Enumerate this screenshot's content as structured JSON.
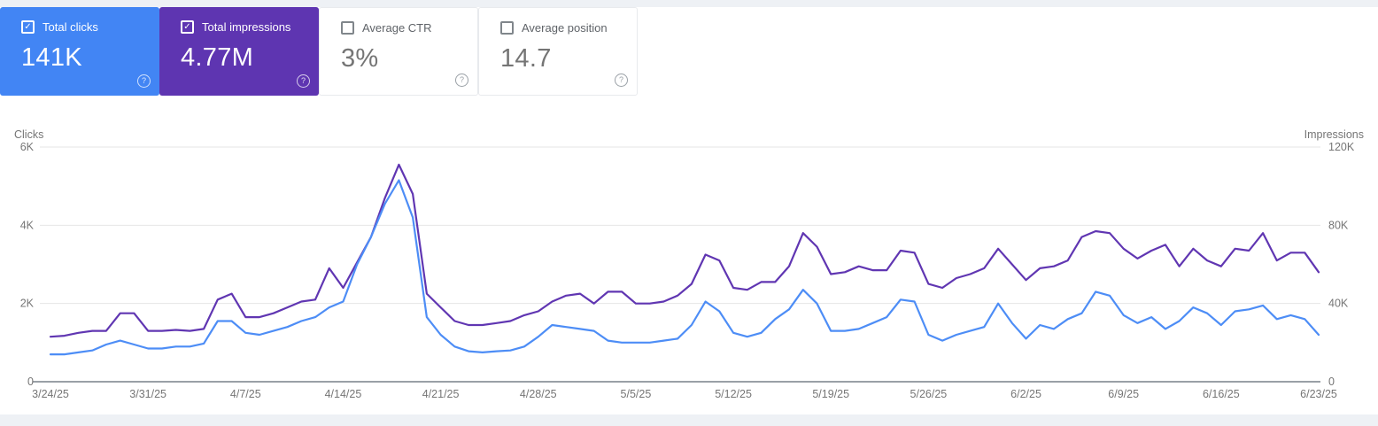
{
  "page": {
    "app": "Google Search Console - Performance",
    "background": "#eef1f5",
    "panel_background": "#ffffff"
  },
  "icons": {
    "checked_glyph": "✓",
    "help_glyph": "?"
  },
  "metric_cards": [
    {
      "label": "Total clicks",
      "value": "141K",
      "selected": true,
      "color": "#4285f4"
    },
    {
      "label": "Total impressions",
      "value": "4.77M",
      "selected": true,
      "color": "#5e35b1"
    },
    {
      "label": "Average CTR",
      "value": "3%",
      "selected": false,
      "color": "#ffffff"
    },
    {
      "label": "Average position",
      "value": "14.7",
      "selected": false,
      "color": "#ffffff"
    }
  ],
  "chart_data": {
    "type": "line",
    "title": "",
    "grid": true,
    "legend": "none",
    "num_points": 92,
    "x_tick_labels": [
      "3/24/25",
      "3/31/25",
      "4/7/25",
      "4/14/25",
      "4/21/25",
      "4/28/25",
      "5/5/25",
      "5/12/25",
      "5/19/25",
      "5/26/25",
      "6/2/25",
      "6/9/25",
      "6/16/25",
      "6/23/25"
    ],
    "x_tick_indices": [
      0,
      7,
      14,
      21,
      28,
      35,
      42,
      49,
      56,
      63,
      70,
      77,
      84,
      91
    ],
    "left_axis": {
      "label": "Clicks",
      "ticks": [
        "6K",
        "4K",
        "2K",
        "0"
      ],
      "tick_values": [
        6000,
        4000,
        2000,
        0
      ],
      "range": [
        0,
        6000
      ]
    },
    "right_axis": {
      "label": "Impressions",
      "ticks": [
        "120K",
        "80K",
        "40K",
        "0"
      ],
      "tick_values": [
        120000,
        80000,
        40000,
        0
      ],
      "range": [
        0,
        120000
      ]
    },
    "series": [
      {
        "name": "Impressions",
        "axis": "right",
        "color": "#6036b2",
        "values": [
          23000,
          23500,
          25000,
          26000,
          26000,
          35000,
          35000,
          26000,
          26000,
          26500,
          26000,
          27000,
          42000,
          45000,
          33000,
          33000,
          35000,
          38000,
          41000,
          42000,
          58000,
          48000,
          61000,
          74000,
          94000,
          111000,
          96000,
          45000,
          38000,
          31000,
          29000,
          29000,
          30000,
          31000,
          34000,
          36000,
          41000,
          44000,
          45000,
          40000,
          46000,
          46000,
          40000,
          40000,
          41000,
          44000,
          50000,
          65000,
          62000,
          48000,
          47000,
          51000,
          51000,
          59000,
          76000,
          69000,
          55000,
          56000,
          59000,
          57000,
          57000,
          67000,
          66000,
          50000,
          48000,
          53000,
          55000,
          58000,
          68000,
          60000,
          52000,
          58000,
          59000,
          62000,
          74000,
          77000,
          76000,
          68000,
          63000,
          67000,
          70000,
          59000,
          68000,
          62000,
          59000,
          68000,
          67000,
          76000,
          62000,
          66000,
          66000,
          56000
        ]
      },
      {
        "name": "Clicks",
        "axis": "left",
        "color": "#4d8df6",
        "values": [
          700,
          700,
          750,
          800,
          950,
          1050,
          950,
          850,
          850,
          900,
          900,
          975,
          1550,
          1550,
          1250,
          1200,
          1300,
          1400,
          1550,
          1650,
          1900,
          2050,
          3000,
          3700,
          4550,
          5150,
          4200,
          1650,
          1200,
          900,
          780,
          750,
          780,
          800,
          900,
          1150,
          1450,
          1400,
          1350,
          1300,
          1050,
          1000,
          1000,
          1000,
          1050,
          1100,
          1450,
          2050,
          1800,
          1250,
          1150,
          1250,
          1600,
          1850,
          2350,
          2000,
          1300,
          1300,
          1350,
          1500,
          1650,
          2100,
          2050,
          1200,
          1050,
          1200,
          1300,
          1400,
          2000,
          1500,
          1100,
          1450,
          1350,
          1600,
          1750,
          2300,
          2200,
          1700,
          1500,
          1650,
          1350,
          1550,
          1900,
          1750,
          1450,
          1800,
          1850,
          1950,
          1600,
          1700,
          1600,
          1200
        ]
      }
    ],
    "colors": {
      "gridline": "#e6e6e6",
      "axis_line": "#9aa0a6",
      "tick_text": "#757575"
    }
  }
}
